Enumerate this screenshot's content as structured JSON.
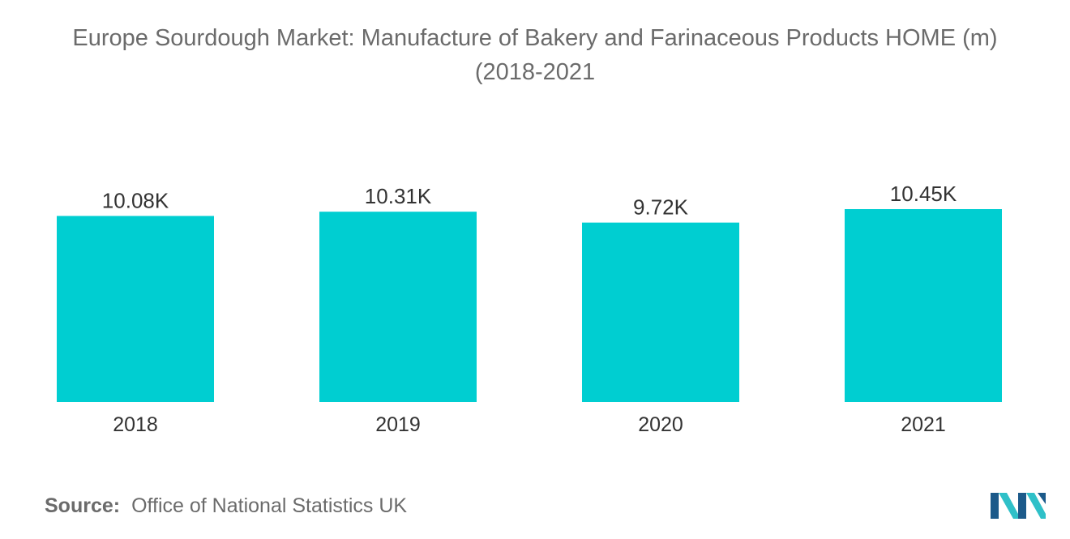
{
  "title_line1": "Europe Sourdough Market: Manufacture of Bakery and Farinaceous Products HOME (m)",
  "title_line2": "(2018-2021",
  "source_key": "Source:",
  "source_value": "Office of National Statistics UK",
  "colors": {
    "bar": "#00CED1",
    "text": "#333333",
    "title": "#6b6b6b",
    "logo_dark": "#1c5a8a",
    "logo_light": "#2fc0c8"
  },
  "chart_data": {
    "type": "bar",
    "categories": [
      "2018",
      "2019",
      "2020",
      "2021"
    ],
    "values": [
      10080,
      10310,
      9720,
      10450
    ],
    "data_labels": [
      "10.08K",
      "10.31K",
      "9.72K",
      "10.45K"
    ],
    "ylim": [
      0,
      10450
    ],
    "grid": false,
    "legend": "none",
    "xlabel": "",
    "ylabel": ""
  }
}
